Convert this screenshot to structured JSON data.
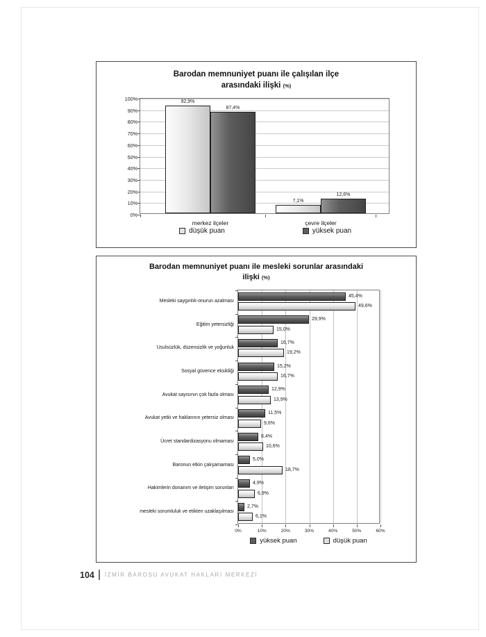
{
  "page": {
    "footer": {
      "page_number": "104",
      "footer_text": "İZMİR BAROSU AVUKAT HAKLARI MERKEZİ"
    }
  },
  "colors": {
    "dark_series": "#5e5e5e",
    "light_series": "#e2e2e2",
    "gridline": "#c9c9c9",
    "plot_border": "#7d7d7d"
  },
  "chart_data": [
    {
      "type": "bar",
      "title": "Barodan memnuniyet puanı ile çalışılan ilçe arasındaki ilişki",
      "title_lines": [
        "Barodan memnuniyet puanı ile çalışılan ilçe",
        "arasındaki ilişki"
      ],
      "unit_suffix": "(%)",
      "categories": [
        "merkez ilçeler",
        "çevre ilçeler"
      ],
      "series": [
        {
          "name": "düşük puan",
          "tone": "light",
          "values": [
            92.9,
            7.1
          ]
        },
        {
          "name": "yüksek puan",
          "tone": "dark",
          "values": [
            87.4,
            12.6
          ]
        }
      ],
      "data_labels": [
        "92,9%",
        "87,4%",
        "7,1%",
        "12,6%"
      ],
      "ylim": [
        0,
        100
      ],
      "yticks": [
        "0%",
        "10%",
        "20%",
        "30%",
        "40%",
        "50%",
        "60%",
        "70%",
        "80%",
        "90%",
        "100%"
      ],
      "grid": true,
      "legend_position": "bottom"
    },
    {
      "type": "bar-horizontal",
      "title": "Barodan memnuniyet puanı ile mesleki sorunlar arasındaki ilişki",
      "title_lines": [
        "Barodan memnuniyet puanı ile mesleki sorunlar arasındaki",
        "ilişki"
      ],
      "unit_suffix": "(%)",
      "categories": [
        "Mesleki saygınlık-onurun azalması",
        "Eğitim yetersizliği",
        "Usulsüzlük, düzensizlik ve yoğunluk",
        "Sosyal güvence eksikliği",
        "Avukat sayısının çok fazla olması",
        "Avukat yetki ve haklarının yetersiz olması",
        "Ücret standardizasyonu olmaması",
        "Baronun etkin çalışamaması",
        "Hakimlerin donanım ve iletişim sorunları",
        "mesleki sorumluluk ve etikten uzaklaşılması"
      ],
      "series": [
        {
          "name": "yüksek puan",
          "tone": "dark",
          "values": [
            45.4,
            29.9,
            16.7,
            15.2,
            12.9,
            11.5,
            8.4,
            5.0,
            4.9,
            2.7
          ]
        },
        {
          "name": "düşük puan",
          "tone": "light",
          "values": [
            49.6,
            15.0,
            19.2,
            16.7,
            13.9,
            9.6,
            10.6,
            18.7,
            6.9,
            6.1
          ]
        }
      ],
      "xlim": [
        0,
        60
      ],
      "xticks": [
        "0%",
        "10%",
        "20%",
        "30%",
        "40%",
        "50%",
        "60%"
      ],
      "grid": true,
      "legend_position": "bottom"
    }
  ]
}
